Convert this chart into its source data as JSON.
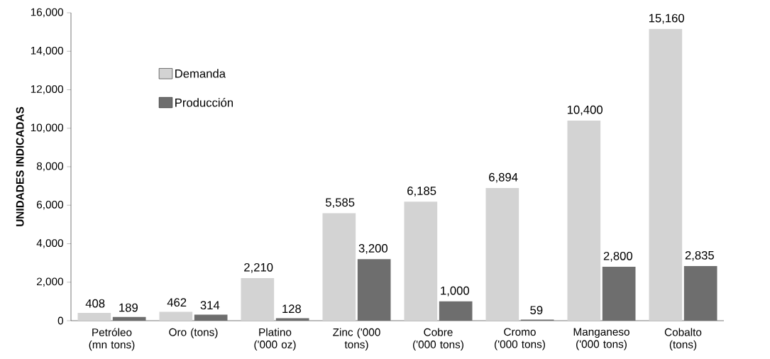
{
  "chart_data": {
    "type": "bar",
    "ylabel": "UNIDADES INDICADAS",
    "categories": [
      "Petróleo (mn tons)",
      "Oro (tons)",
      "Platino ('000 oz)",
      "Zinc ('000 tons)",
      "Cobre ('000 tons)",
      "Cromo ('000 tons)",
      "Manganeso ('000 tons)",
      "Cobalto (tons)"
    ],
    "series": [
      {
        "name": "Demanda",
        "color": "#d3d3d3",
        "values": [
          408,
          462,
          2210,
          5585,
          6185,
          6894,
          10400,
          15160
        ],
        "value_labels": [
          "408",
          "462",
          "2,210",
          "5,585",
          "6,185",
          "6,894",
          "10,400",
          "15,160"
        ]
      },
      {
        "name": "Producción",
        "color": "#6e6e6e",
        "values": [
          189,
          314,
          128,
          3200,
          1000,
          59,
          2800,
          2835
        ],
        "value_labels": [
          "189",
          "314",
          "128",
          "3,200",
          "1,000",
          "59",
          "2,800",
          "2,835"
        ]
      }
    ],
    "ylim": [
      0,
      16000
    ],
    "yticks": [
      0,
      {
        "value": 2000,
        "label": "2,000"
      },
      {
        "value": 4000,
        "label": "4,000"
      },
      {
        "value": 6000,
        "label": "6,000"
      },
      {
        "value": 8000,
        "label": "8,000"
      },
      {
        "value": 10000,
        "label": "10,000"
      },
      {
        "value": 12000,
        "label": "12,000"
      },
      {
        "value": 14000,
        "label": "14,000"
      },
      {
        "value": 16000,
        "label": "16,000"
      }
    ],
    "legend": "top left",
    "grid": false
  }
}
